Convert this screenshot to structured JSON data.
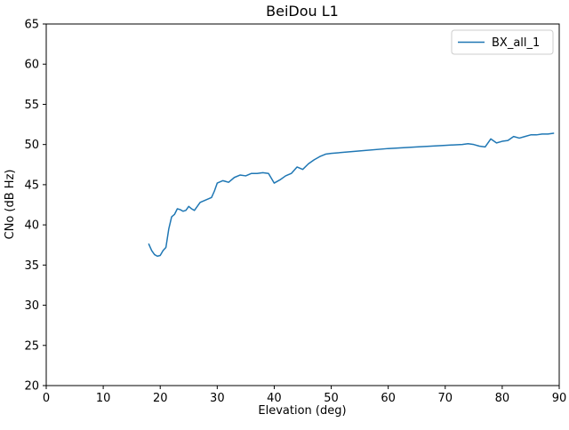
{
  "chart_data": {
    "type": "line",
    "title": "BeiDou L1",
    "xlabel": "Elevation (deg)",
    "ylabel": "CNo (dB Hz)",
    "xlim": [
      0,
      90
    ],
    "ylim": [
      20,
      65
    ],
    "xticks": [
      0,
      10,
      20,
      30,
      40,
      50,
      60,
      70,
      80,
      90
    ],
    "yticks": [
      20,
      25,
      30,
      35,
      40,
      45,
      50,
      55,
      60,
      65
    ],
    "grid": false,
    "legend_position": "upper right",
    "line_color": "#1f77b4",
    "series": [
      {
        "name": "BX_all_1",
        "points": [
          [
            18,
            37.6
          ],
          [
            18.5,
            36.8
          ],
          [
            19,
            36.3
          ],
          [
            19.5,
            36.1
          ],
          [
            20,
            36.2
          ],
          [
            20.5,
            36.8
          ],
          [
            21,
            37.2
          ],
          [
            21.5,
            39.5
          ],
          [
            22,
            41.0
          ],
          [
            22.5,
            41.3
          ],
          [
            23,
            42.0
          ],
          [
            23.5,
            41.9
          ],
          [
            24,
            41.7
          ],
          [
            24.5,
            41.8
          ],
          [
            25,
            42.3
          ],
          [
            25.5,
            42.0
          ],
          [
            26,
            41.8
          ],
          [
            27,
            42.8
          ],
          [
            28,
            43.1
          ],
          [
            29,
            43.4
          ],
          [
            29.5,
            44.2
          ],
          [
            30,
            45.2
          ],
          [
            31,
            45.5
          ],
          [
            32,
            45.3
          ],
          [
            33,
            45.9
          ],
          [
            34,
            46.2
          ],
          [
            35,
            46.1
          ],
          [
            36,
            46.4
          ],
          [
            37,
            46.4
          ],
          [
            38,
            46.5
          ],
          [
            39,
            46.4
          ],
          [
            40,
            45.2
          ],
          [
            41,
            45.6
          ],
          [
            42,
            46.1
          ],
          [
            43,
            46.4
          ],
          [
            44,
            47.2
          ],
          [
            45,
            46.9
          ],
          [
            46,
            47.6
          ],
          [
            47,
            48.1
          ],
          [
            48,
            48.5
          ],
          [
            49,
            48.8
          ],
          [
            50,
            48.9
          ],
          [
            55,
            49.2
          ],
          [
            60,
            49.5
          ],
          [
            65,
            49.7
          ],
          [
            70,
            49.9
          ],
          [
            73,
            50.0
          ],
          [
            74,
            50.1
          ],
          [
            75,
            50.0
          ],
          [
            76,
            49.8
          ],
          [
            77,
            49.7
          ],
          [
            78,
            50.7
          ],
          [
            79,
            50.2
          ],
          [
            80,
            50.4
          ],
          [
            81,
            50.5
          ],
          [
            82,
            51.0
          ],
          [
            83,
            50.8
          ],
          [
            84,
            51.0
          ],
          [
            85,
            51.2
          ],
          [
            86,
            51.2
          ],
          [
            87,
            51.3
          ],
          [
            88,
            51.3
          ],
          [
            89,
            51.4
          ]
        ]
      }
    ]
  }
}
